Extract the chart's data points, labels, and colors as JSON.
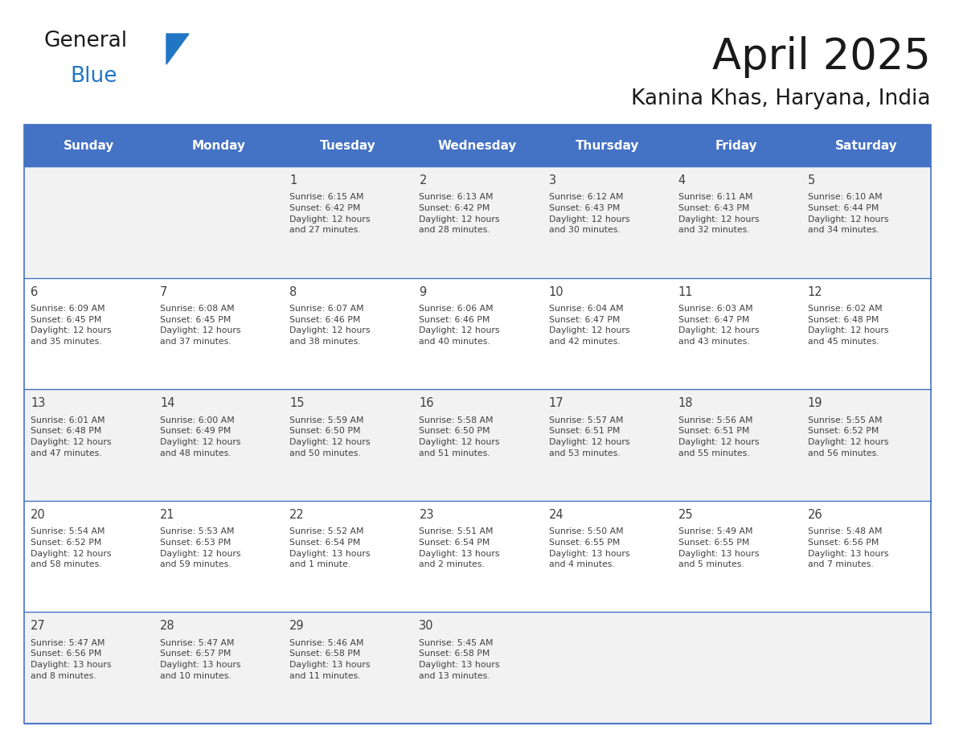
{
  "title": "April 2025",
  "subtitle": "Kanina Khas, Haryana, India",
  "days_of_week": [
    "Sunday",
    "Monday",
    "Tuesday",
    "Wednesday",
    "Thursday",
    "Friday",
    "Saturday"
  ],
  "header_bg": "#4472C4",
  "header_text": "#FFFFFF",
  "cell_bg_odd": "#F2F2F2",
  "cell_bg_even": "#FFFFFF",
  "border_color": "#4472C4",
  "text_color": "#404040",
  "title_color": "#1a1a1a",
  "calendar_data": [
    [
      {
        "day": null,
        "info": null
      },
      {
        "day": null,
        "info": null
      },
      {
        "day": 1,
        "info": "Sunrise: 6:15 AM\nSunset: 6:42 PM\nDaylight: 12 hours\nand 27 minutes."
      },
      {
        "day": 2,
        "info": "Sunrise: 6:13 AM\nSunset: 6:42 PM\nDaylight: 12 hours\nand 28 minutes."
      },
      {
        "day": 3,
        "info": "Sunrise: 6:12 AM\nSunset: 6:43 PM\nDaylight: 12 hours\nand 30 minutes."
      },
      {
        "day": 4,
        "info": "Sunrise: 6:11 AM\nSunset: 6:43 PM\nDaylight: 12 hours\nand 32 minutes."
      },
      {
        "day": 5,
        "info": "Sunrise: 6:10 AM\nSunset: 6:44 PM\nDaylight: 12 hours\nand 34 minutes."
      }
    ],
    [
      {
        "day": 6,
        "info": "Sunrise: 6:09 AM\nSunset: 6:45 PM\nDaylight: 12 hours\nand 35 minutes."
      },
      {
        "day": 7,
        "info": "Sunrise: 6:08 AM\nSunset: 6:45 PM\nDaylight: 12 hours\nand 37 minutes."
      },
      {
        "day": 8,
        "info": "Sunrise: 6:07 AM\nSunset: 6:46 PM\nDaylight: 12 hours\nand 38 minutes."
      },
      {
        "day": 9,
        "info": "Sunrise: 6:06 AM\nSunset: 6:46 PM\nDaylight: 12 hours\nand 40 minutes."
      },
      {
        "day": 10,
        "info": "Sunrise: 6:04 AM\nSunset: 6:47 PM\nDaylight: 12 hours\nand 42 minutes."
      },
      {
        "day": 11,
        "info": "Sunrise: 6:03 AM\nSunset: 6:47 PM\nDaylight: 12 hours\nand 43 minutes."
      },
      {
        "day": 12,
        "info": "Sunrise: 6:02 AM\nSunset: 6:48 PM\nDaylight: 12 hours\nand 45 minutes."
      }
    ],
    [
      {
        "day": 13,
        "info": "Sunrise: 6:01 AM\nSunset: 6:48 PM\nDaylight: 12 hours\nand 47 minutes."
      },
      {
        "day": 14,
        "info": "Sunrise: 6:00 AM\nSunset: 6:49 PM\nDaylight: 12 hours\nand 48 minutes."
      },
      {
        "day": 15,
        "info": "Sunrise: 5:59 AM\nSunset: 6:50 PM\nDaylight: 12 hours\nand 50 minutes."
      },
      {
        "day": 16,
        "info": "Sunrise: 5:58 AM\nSunset: 6:50 PM\nDaylight: 12 hours\nand 51 minutes."
      },
      {
        "day": 17,
        "info": "Sunrise: 5:57 AM\nSunset: 6:51 PM\nDaylight: 12 hours\nand 53 minutes."
      },
      {
        "day": 18,
        "info": "Sunrise: 5:56 AM\nSunset: 6:51 PM\nDaylight: 12 hours\nand 55 minutes."
      },
      {
        "day": 19,
        "info": "Sunrise: 5:55 AM\nSunset: 6:52 PM\nDaylight: 12 hours\nand 56 minutes."
      }
    ],
    [
      {
        "day": 20,
        "info": "Sunrise: 5:54 AM\nSunset: 6:52 PM\nDaylight: 12 hours\nand 58 minutes."
      },
      {
        "day": 21,
        "info": "Sunrise: 5:53 AM\nSunset: 6:53 PM\nDaylight: 12 hours\nand 59 minutes."
      },
      {
        "day": 22,
        "info": "Sunrise: 5:52 AM\nSunset: 6:54 PM\nDaylight: 13 hours\nand 1 minute."
      },
      {
        "day": 23,
        "info": "Sunrise: 5:51 AM\nSunset: 6:54 PM\nDaylight: 13 hours\nand 2 minutes."
      },
      {
        "day": 24,
        "info": "Sunrise: 5:50 AM\nSunset: 6:55 PM\nDaylight: 13 hours\nand 4 minutes."
      },
      {
        "day": 25,
        "info": "Sunrise: 5:49 AM\nSunset: 6:55 PM\nDaylight: 13 hours\nand 5 minutes."
      },
      {
        "day": 26,
        "info": "Sunrise: 5:48 AM\nSunset: 6:56 PM\nDaylight: 13 hours\nand 7 minutes."
      }
    ],
    [
      {
        "day": 27,
        "info": "Sunrise: 5:47 AM\nSunset: 6:56 PM\nDaylight: 13 hours\nand 8 minutes."
      },
      {
        "day": 28,
        "info": "Sunrise: 5:47 AM\nSunset: 6:57 PM\nDaylight: 13 hours\nand 10 minutes."
      },
      {
        "day": 29,
        "info": "Sunrise: 5:46 AM\nSunset: 6:58 PM\nDaylight: 13 hours\nand 11 minutes."
      },
      {
        "day": 30,
        "info": "Sunrise: 5:45 AM\nSunset: 6:58 PM\nDaylight: 13 hours\nand 13 minutes."
      },
      {
        "day": null,
        "info": null
      },
      {
        "day": null,
        "info": null
      },
      {
        "day": null,
        "info": null
      }
    ]
  ],
  "logo_color_general": "#1a1a1a",
  "logo_color_blue": "#2176C4",
  "logo_triangle_color": "#2176C4",
  "figsize": [
    11.88,
    9.18
  ],
  "dpi": 100
}
